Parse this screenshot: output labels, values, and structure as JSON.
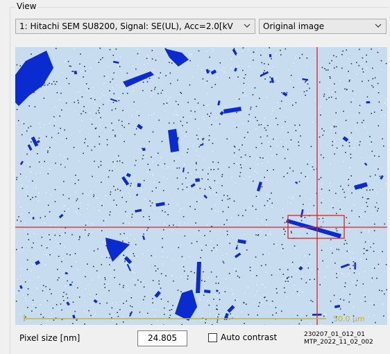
{
  "group": {
    "title": "View"
  },
  "controls": {
    "source_select": "1: Hitachi SEM SU8200, Signal: SE(UL), Acc=2.0[kV",
    "mode_select": "Original image"
  },
  "image": {
    "scale_bar": "50.0 µm"
  },
  "footer": {
    "pixel_size_label": "Pixel size [nm]",
    "pixel_size_value": "24.805",
    "auto_contrast_label": "Auto contrast",
    "file_name_lines": [
      "230207_01_012_01",
      "MTP_2022_11_02_002"
    ]
  }
}
